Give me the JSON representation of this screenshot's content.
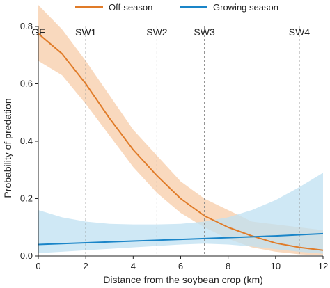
{
  "chart_data": {
    "type": "line",
    "title": "",
    "xlabel": "Distance from the soybean crop (km)",
    "ylabel": "Probability of predation",
    "xlim": [
      0,
      12
    ],
    "ylim": [
      0,
      0.8
    ],
    "xticks": [
      0,
      2,
      4,
      6,
      8,
      10,
      12
    ],
    "yticks": [
      0.0,
      0.2,
      0.4,
      0.6,
      0.8
    ],
    "ytick_labels": [
      "0.0",
      "0.2",
      "0.4",
      "0.6",
      "0.8"
    ],
    "grid": false,
    "legend_position": "top",
    "reference_lines": [
      {
        "label": "GF",
        "x": 0
      },
      {
        "label": "SW1",
        "x": 2
      },
      {
        "label": "SW2",
        "x": 5
      },
      {
        "label": "SW3",
        "x": 7
      },
      {
        "label": "SW4",
        "x": 11
      }
    ],
    "x": [
      0,
      1,
      2,
      3,
      4,
      5,
      6,
      7,
      8,
      9,
      10,
      11,
      12
    ],
    "series": [
      {
        "name": "Off-season",
        "color": "#E07B28",
        "band_color": "#F7C9A3",
        "values": [
          0.775,
          0.705,
          0.6,
          0.48,
          0.37,
          0.28,
          0.2,
          0.14,
          0.1,
          0.07,
          0.045,
          0.03,
          0.02
        ],
        "lower": [
          0.68,
          0.63,
          0.53,
          0.42,
          0.31,
          0.22,
          0.15,
          0.1,
          0.06,
          0.03,
          0.015,
          0.006,
          0.002
        ],
        "upper": [
          0.875,
          0.79,
          0.68,
          0.56,
          0.44,
          0.35,
          0.26,
          0.2,
          0.16,
          0.12,
          0.11,
          0.1,
          0.09
        ]
      },
      {
        "name": "Growing season",
        "color": "#1A85C8",
        "band_color": "#BFE0F2",
        "values": [
          0.04,
          0.043,
          0.046,
          0.049,
          0.052,
          0.055,
          0.058,
          0.061,
          0.064,
          0.067,
          0.07,
          0.074,
          0.078
        ],
        "lower": [
          0.01,
          0.015,
          0.02,
          0.025,
          0.03,
          0.035,
          0.04,
          0.043,
          0.04,
          0.033,
          0.024,
          0.015,
          0.008
        ],
        "upper": [
          0.16,
          0.135,
          0.12,
          0.112,
          0.11,
          0.11,
          0.112,
          0.12,
          0.135,
          0.16,
          0.195,
          0.24,
          0.29
        ]
      }
    ]
  }
}
